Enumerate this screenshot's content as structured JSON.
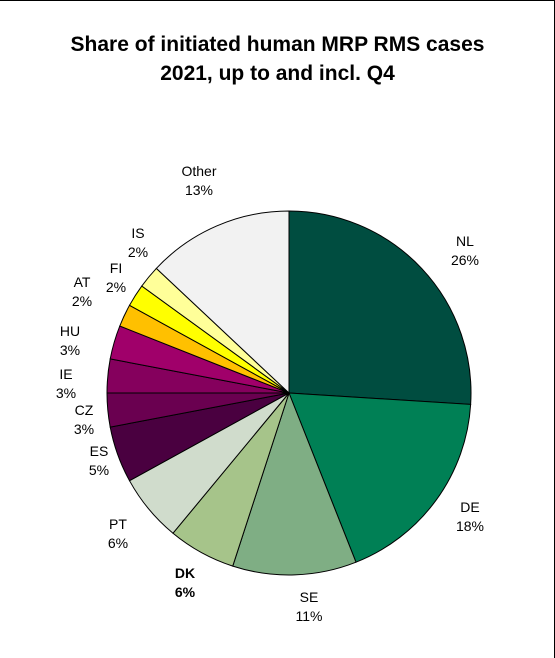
{
  "chart_data": {
    "type": "pie",
    "title_lines": [
      "Share of initiated human MRP RMS cases",
      "2021, up to and incl. Q4"
    ],
    "start_angle_deg": 0,
    "direction": "clockwise",
    "legend": "none",
    "slices": [
      {
        "label": "NL",
        "value_text": "26%",
        "value": 26,
        "color": "#004d40",
        "bold": false
      },
      {
        "label": "DE",
        "value_text": "18%",
        "value": 18,
        "color": "#008055",
        "bold": false
      },
      {
        "label": "SE",
        "value_text": "11%",
        "value": 11,
        "color": "#7fae84",
        "bold": false
      },
      {
        "label": "DK",
        "value_text": "6%",
        "value": 6,
        "color": "#a6c48a",
        "bold": true
      },
      {
        "label": "PT",
        "value_text": "6%",
        "value": 6,
        "color": "#d0dccc",
        "bold": false
      },
      {
        "label": "ES",
        "value_text": "5%",
        "value": 5,
        "color": "#4a0040",
        "bold": false
      },
      {
        "label": "CZ",
        "value_text": "3%",
        "value": 3,
        "color": "#6a0050",
        "bold": false
      },
      {
        "label": "IE",
        "value_text": "3%",
        "value": 3,
        "color": "#85005d",
        "bold": false
      },
      {
        "label": "HU",
        "value_text": "3%",
        "value": 3,
        "color": "#a0006a",
        "bold": false
      },
      {
        "label": "AT",
        "value_text": "2%",
        "value": 2,
        "color": "#ffc000",
        "bold": false
      },
      {
        "label": "FI",
        "value_text": "2%",
        "value": 2,
        "color": "#ffff00",
        "bold": false
      },
      {
        "label": "IS",
        "value_text": "2%",
        "value": 2,
        "color": "#ffff99",
        "bold": false
      },
      {
        "label": "Other",
        "value_text": "13%",
        "value": 13,
        "color": "#f2f2f2",
        "bold": false
      }
    ]
  }
}
